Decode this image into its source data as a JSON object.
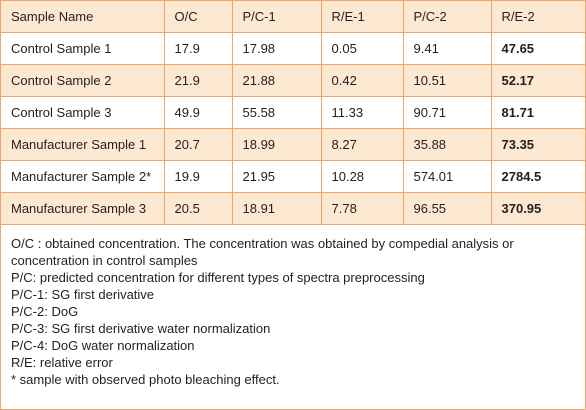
{
  "table": {
    "headers": [
      "Sample Name",
      "O/C",
      "P/C-1",
      "R/E-1",
      "P/C-2",
      "R/E-2"
    ],
    "rows": [
      [
        "Control Sample 1",
        "17.9",
        "17.98",
        "0.05",
        "9.41",
        "47.65"
      ],
      [
        "Control Sample 2",
        "21.9",
        "21.88",
        "0.42",
        "10.51",
        "52.17"
      ],
      [
        "Control Sample 3",
        "49.9",
        "55.58",
        "11.33",
        "90.71",
        "81.71"
      ],
      [
        "Manufacturer Sample 1",
        "20.7",
        "18.99",
        "8.27",
        "35.88",
        "73.35"
      ],
      [
        "Manufacturer Sample 2*",
        "19.9",
        "21.95",
        "10.28",
        "574.01",
        "2784.5"
      ],
      [
        "Manufacturer Sample 3",
        "20.5",
        "18.91",
        "7.78",
        "96.55",
        "370.95"
      ]
    ]
  },
  "notes": [
    "O/C : obtained concentration. The concentration was obtained by compedial analysis or",
    "concentration in control samples",
    "P/C: predicted concentration for different types of spectra preprocessing",
    "P/C-1: SG first derivative",
    "P/C-2: DoG",
    "P/C-3: SG first derivative water normalization",
    "P/C-4: DoG water normalization",
    "R/E: relative error",
    "* sample with observed photo bleaching effect."
  ],
  "colors": {
    "border": "#f0a66a",
    "stripe": "#fde8d2",
    "text": "#231f20"
  }
}
